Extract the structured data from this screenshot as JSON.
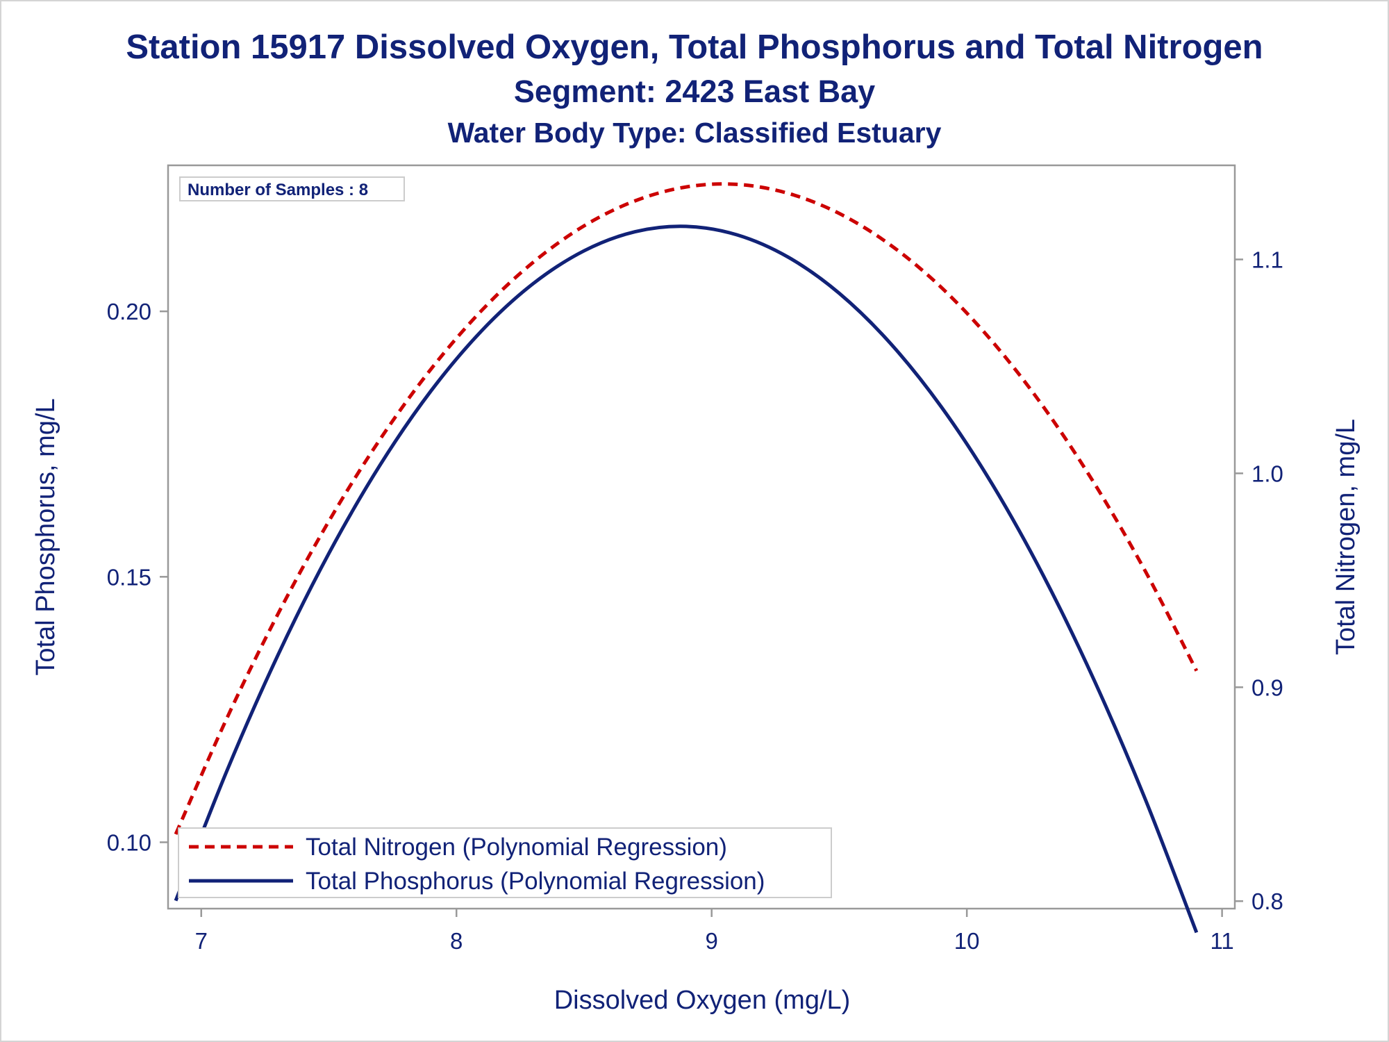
{
  "titles": {
    "line1": "Station 15917  Dissolved Oxygen, Total Phosphorus and Total Nitrogen",
    "line2": "Segment: 2423  East Bay",
    "line3": "Water Body Type: Classified Estuary"
  },
  "inset": "Number of Samples : 8",
  "colors": {
    "text": "#112277",
    "nitrogen": "#cc0000",
    "phosphorus": "#112277",
    "axis": "#999999"
  },
  "chart_data": {
    "type": "line",
    "xlabel": "Dissolved Oxygen (mg/L)",
    "ylabel": "Total Phosphorus, mg/L",
    "y2label": "Total Nitrogen, mg/L",
    "xlim": [
      6.87,
      11.05
    ],
    "ylim": [
      0.0875,
      0.2275
    ],
    "y2lim": [
      0.7965,
      1.144
    ],
    "xticks": [
      "7",
      "8",
      "9",
      "10",
      "11"
    ],
    "yticks": [
      "0.10",
      "0.15",
      "0.20"
    ],
    "y2ticks": [
      "0.8",
      "0.9",
      "1.0",
      "1.1"
    ],
    "grid": false,
    "legend_position": "bottom-left",
    "series": [
      {
        "name": "Total Nitrogen (Polynomial Regression)",
        "axis": "right",
        "style": "dashed",
        "x": [
          6.9,
          7.1,
          7.3,
          7.5,
          7.7,
          7.9,
          8.1,
          8.3,
          8.5,
          8.7,
          8.9,
          9.1,
          9.3,
          9.5,
          9.7,
          9.9,
          10.1,
          10.3,
          10.5,
          10.7,
          10.9
        ],
        "y": [
          0.8313,
          0.8854,
          0.9341,
          0.9776,
          1.0158,
          1.0487,
          1.0763,
          1.0986,
          1.1157,
          1.1274,
          1.1339,
          1.1351,
          1.1309,
          1.1215,
          1.1068,
          1.0869,
          1.0616,
          1.0311,
          0.9952,
          0.9541,
          0.9077
        ]
      },
      {
        "name": "Total Phosphorus (Polynomial Regression)",
        "axis": "left",
        "style": "solid",
        "x": [
          6.9,
          7.1,
          7.3,
          7.5,
          7.7,
          7.9,
          8.1,
          8.3,
          8.5,
          8.7,
          8.9,
          9.1,
          9.3,
          9.5,
          9.7,
          9.9,
          10.1,
          10.3,
          10.5,
          10.7,
          10.9
        ],
        "y": [
          0.089,
          0.1134,
          0.1352,
          0.1544,
          0.171,
          0.185,
          0.1964,
          0.2052,
          0.2114,
          0.215,
          0.216,
          0.2144,
          0.2102,
          0.2034,
          0.194,
          0.182,
          0.1674,
          0.1502,
          0.1304,
          0.108,
          0.083
        ]
      }
    ]
  }
}
